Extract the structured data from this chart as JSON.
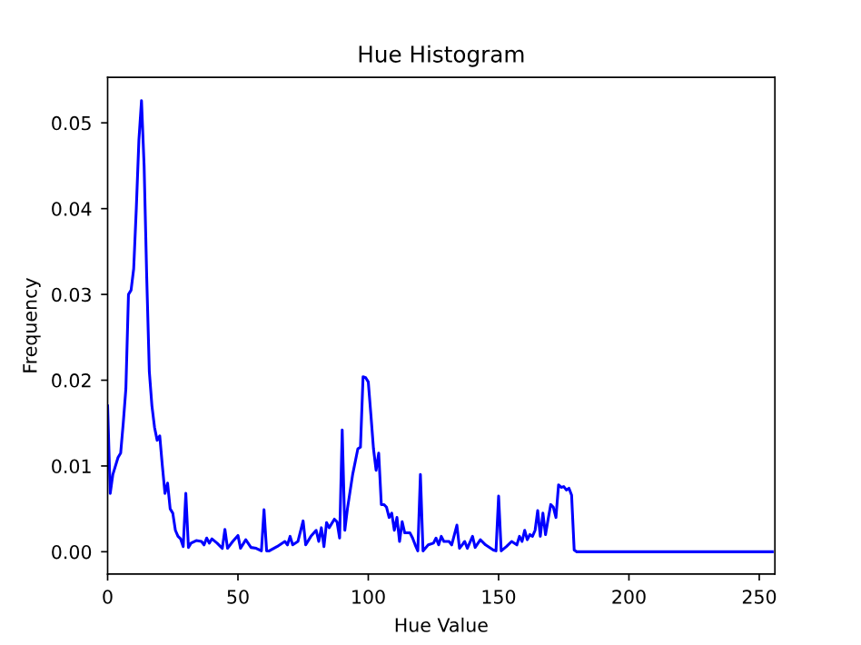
{
  "chart_data": {
    "type": "line",
    "title": "Hue Histogram",
    "xlabel": "Hue Value",
    "ylabel": "Frequency",
    "xlim": [
      0,
      256
    ],
    "xticks": [
      0,
      50,
      100,
      150,
      200,
      250
    ],
    "ylim": [
      -0.0026,
      0.0553
    ],
    "yticks": [
      {
        "value": 0,
        "label": "0.00"
      },
      {
        "value": 0.01,
        "label": "0.01"
      },
      {
        "value": 0.02,
        "label": "0.02"
      },
      {
        "value": 0.03,
        "label": "0.03"
      },
      {
        "value": 0.04,
        "label": "0.04"
      },
      {
        "value": 0.05,
        "label": "0.05"
      }
    ],
    "grid": false,
    "marker": "none",
    "line_style": "solid",
    "series": [
      {
        "color": "#0000ff",
        "x": [
          0,
          1,
          2,
          4,
          5,
          6,
          7,
          8,
          9,
          10,
          11,
          12,
          13,
          14,
          15,
          16,
          17,
          18,
          19,
          20,
          21,
          22,
          23,
          24,
          25,
          26,
          27,
          28,
          29,
          30,
          31,
          32,
          34,
          36,
          37,
          38,
          39,
          40,
          42,
          44,
          45,
          46,
          48,
          50,
          51,
          53,
          55,
          57,
          59,
          60,
          61,
          62,
          65,
          68,
          69,
          70,
          71,
          73,
          75,
          76,
          78,
          80,
          81,
          82,
          83,
          84,
          85,
          87,
          88,
          89,
          90,
          91,
          92,
          94,
          96,
          97,
          98,
          99,
          100,
          101,
          102,
          103,
          104,
          105,
          106,
          107,
          108,
          109,
          110,
          111,
          112,
          113,
          114,
          116,
          117,
          118,
          119,
          120,
          121,
          123,
          125,
          126,
          127,
          128,
          129,
          131,
          132,
          134,
          135,
          137,
          138,
          140,
          141,
          143,
          145,
          148,
          149,
          150,
          151,
          153,
          155,
          157,
          158,
          159,
          160,
          161,
          162,
          163,
          164,
          165,
          166,
          167,
          168,
          169,
          170,
          171,
          172,
          173,
          174,
          175,
          176,
          177,
          178,
          179,
          180,
          255
        ],
        "values": [
          0.017,
          0.0068,
          0.009,
          0.011,
          0.0115,
          0.015,
          0.019,
          0.03,
          0.0305,
          0.033,
          0.04,
          0.048,
          0.0526,
          0.045,
          0.032,
          0.021,
          0.017,
          0.0145,
          0.013,
          0.0135,
          0.01,
          0.0068,
          0.008,
          0.005,
          0.0045,
          0.0025,
          0.0018,
          0.0015,
          0.0006,
          0.0068,
          0.0005,
          0.001,
          0.0013,
          0.0012,
          0.0008,
          0.0016,
          0.001,
          0.0015,
          0.001,
          0.0004,
          0.0026,
          0.0004,
          0.0012,
          0.0019,
          0.0004,
          0.0014,
          0.0005,
          0.0004,
          0.0001,
          0.0049,
          0.0001,
          0.0001,
          0.0006,
          0.0012,
          0.0008,
          0.0018,
          0.0008,
          0.0012,
          0.0036,
          0.0008,
          0.0018,
          0.0025,
          0.0012,
          0.0028,
          0.0006,
          0.0034,
          0.0028,
          0.0038,
          0.0035,
          0.0016,
          0.0142,
          0.0025,
          0.005,
          0.009,
          0.012,
          0.0122,
          0.0204,
          0.0203,
          0.0198,
          0.016,
          0.012,
          0.0095,
          0.0115,
          0.0055,
          0.0055,
          0.0052,
          0.004,
          0.0045,
          0.0025,
          0.004,
          0.0012,
          0.0035,
          0.0022,
          0.0022,
          0.0016,
          0.0008,
          0.0001,
          0.009,
          0.0001,
          0.0008,
          0.001,
          0.0016,
          0.0008,
          0.0018,
          0.0012,
          0.0012,
          0.0008,
          0.0031,
          0.0004,
          0.0012,
          0.0004,
          0.0018,
          0.0005,
          0.0014,
          0.0008,
          0.0002,
          0.0001,
          0.0065,
          0.0001,
          0.0006,
          0.0012,
          0.0008,
          0.0018,
          0.0012,
          0.0025,
          0.0014,
          0.002,
          0.0018,
          0.0025,
          0.0048,
          0.0018,
          0.0045,
          0.002,
          0.0038,
          0.0055,
          0.0052,
          0.004,
          0.0078,
          0.0075,
          0.0076,
          0.0072,
          0.0074,
          0.0066,
          0.0002,
          0,
          0
        ]
      }
    ]
  }
}
